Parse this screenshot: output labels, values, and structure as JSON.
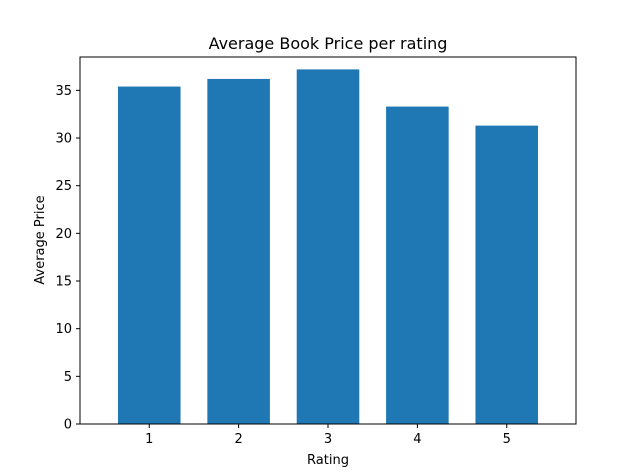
{
  "chart_data": {
    "type": "bar",
    "title": "Average Book Price per rating",
    "xlabel": "Rating",
    "ylabel": "Average Price",
    "categories": [
      "1",
      "2",
      "3",
      "4",
      "5"
    ],
    "values": [
      35.4,
      36.2,
      37.2,
      33.3,
      31.3
    ],
    "ylim": [
      0,
      38.5
    ],
    "yticks": [
      0,
      5,
      10,
      15,
      20,
      25,
      30,
      35
    ],
    "ytick_labels": [
      "0",
      "5",
      "10",
      "15",
      "20",
      "25",
      "30",
      "35"
    ],
    "grid": false,
    "bar_color": "#1f77b4"
  }
}
